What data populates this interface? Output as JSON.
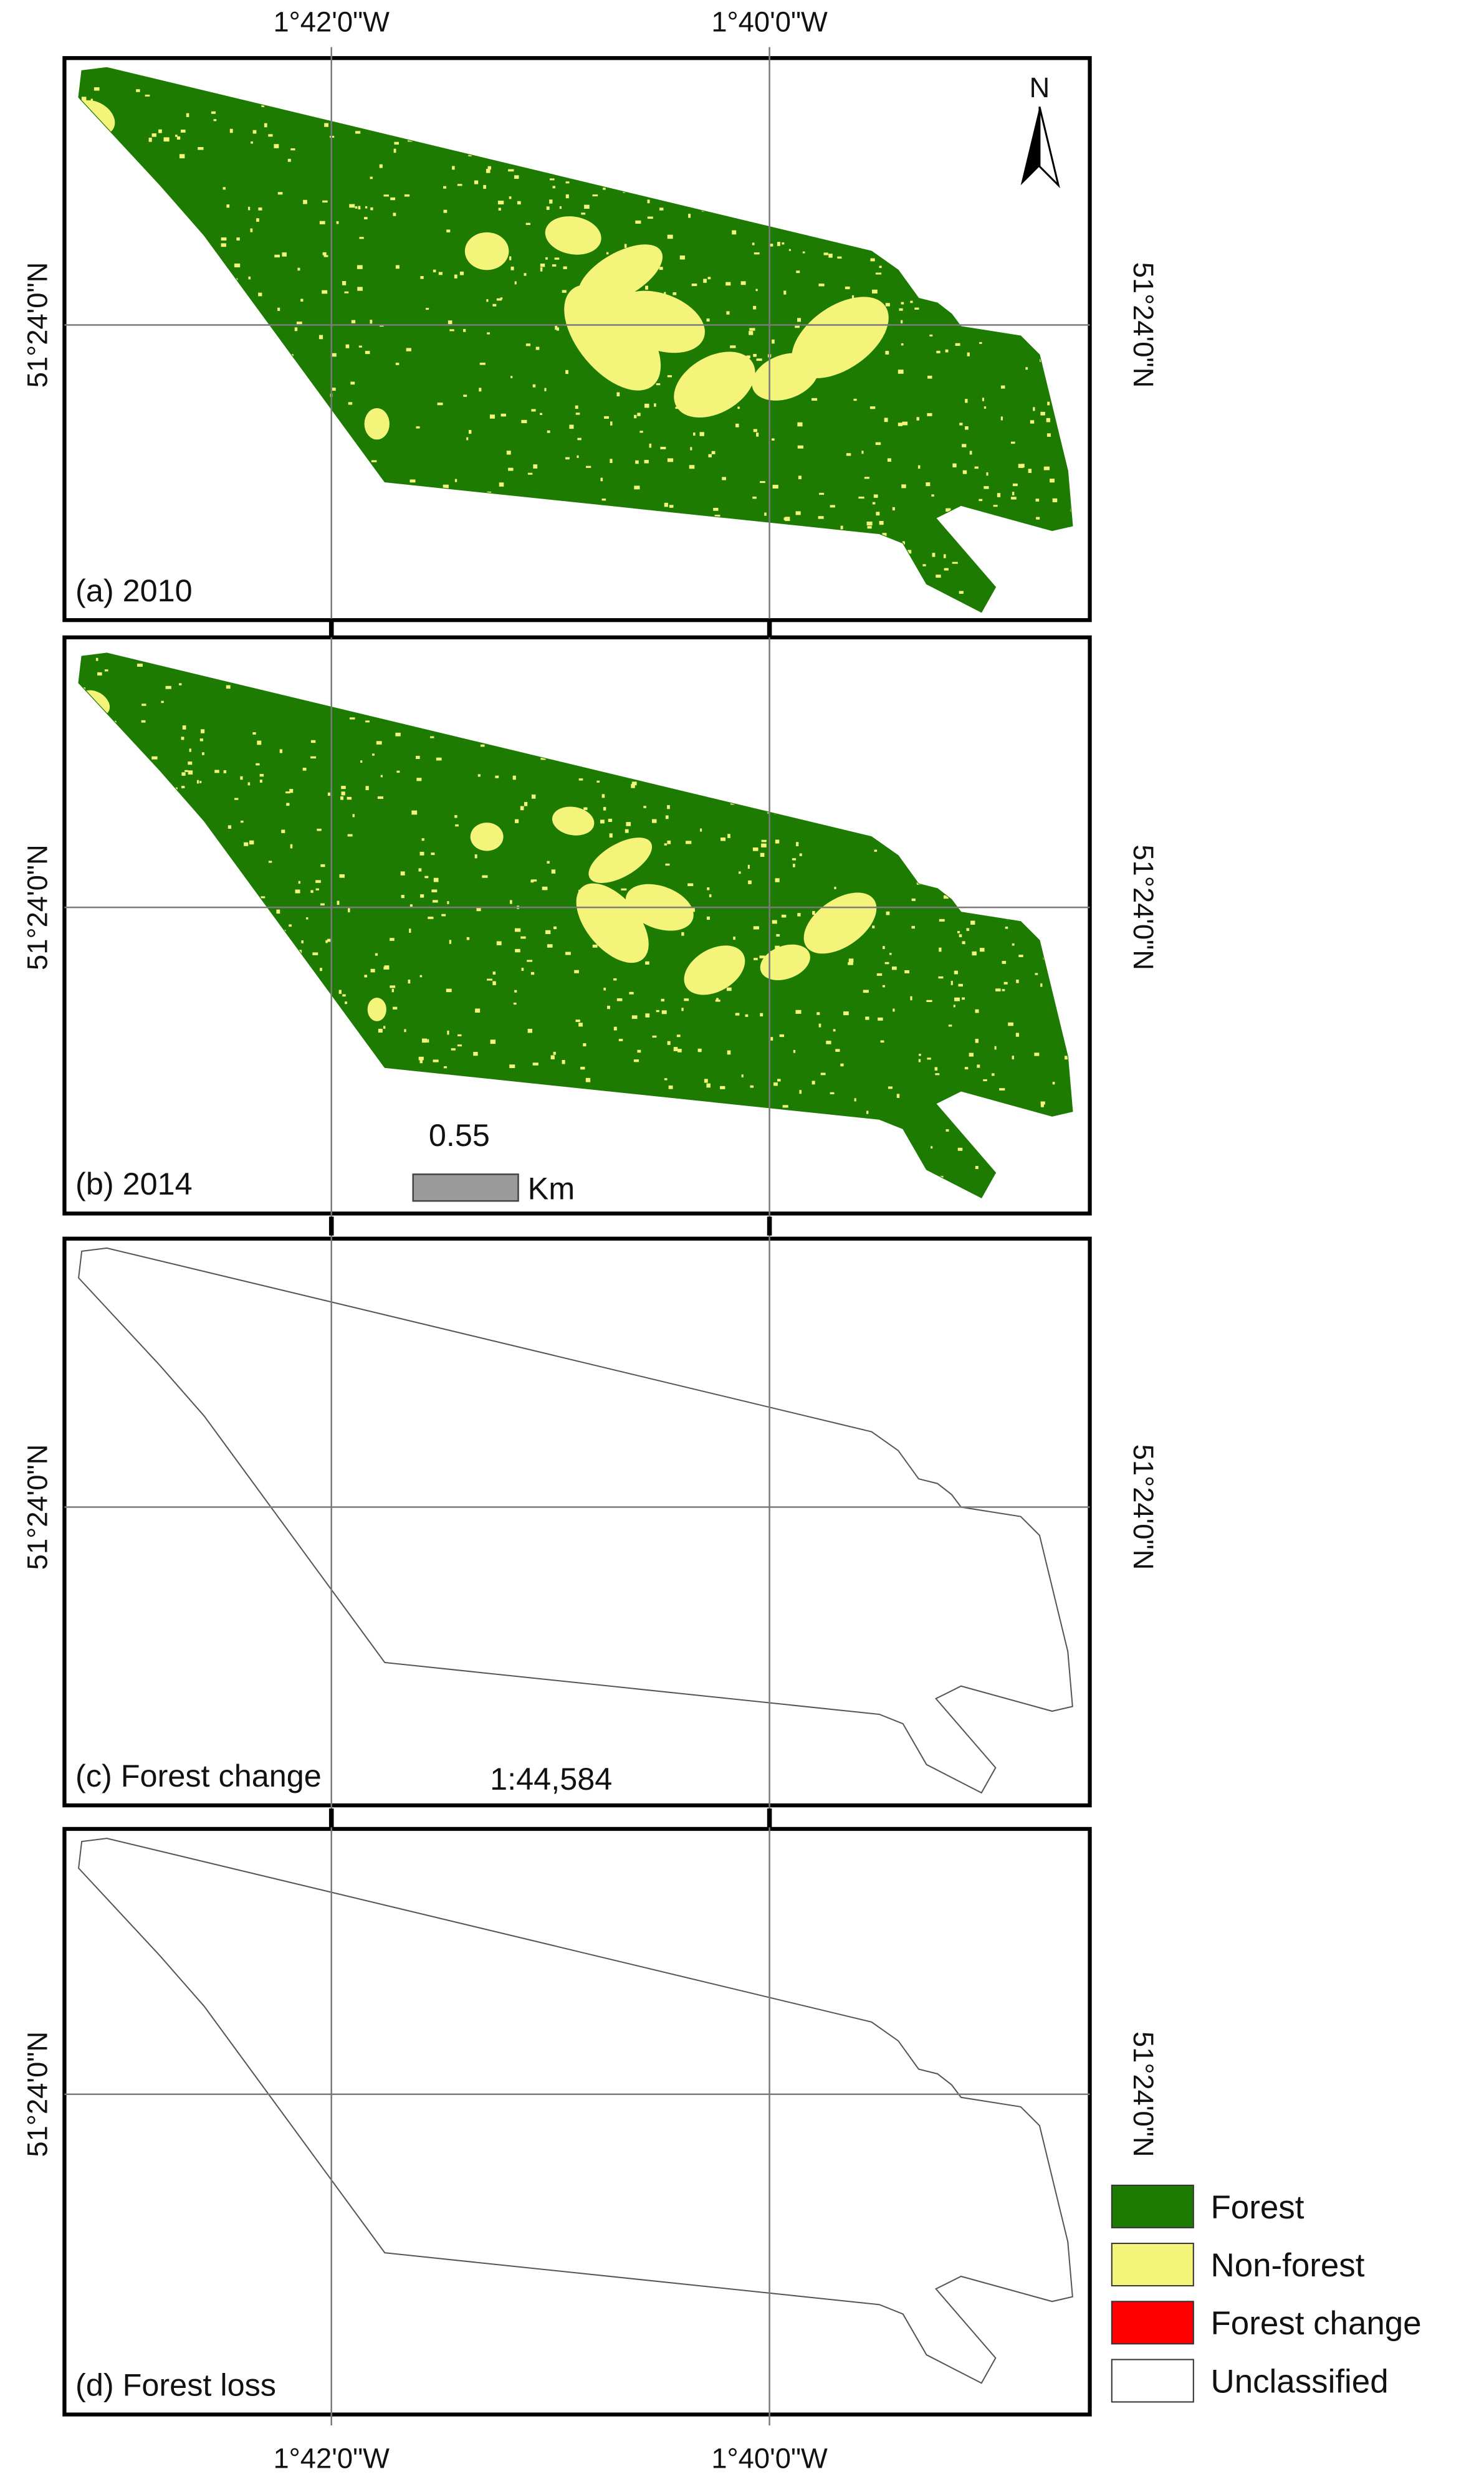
{
  "map": {
    "top_labels": [
      "1°42'0\"W",
      "1°40'0\"W"
    ],
    "bottom_labels": [
      "1°42'0\"W",
      "1°40'0\"W"
    ],
    "left_labels": [
      "51°24'0\"N",
      "51°24'0\"N",
      "51°24'0\"N",
      "51°24'0\"N"
    ],
    "right_labels": [
      "51°24'0\"N",
      "51°24'0\"N",
      "51°24'0\"N",
      "51°24'0\"N"
    ],
    "panels": [
      {
        "label": "(a) 2010"
      },
      {
        "label": "(b) 2014"
      },
      {
        "label": "(c) Forest change"
      },
      {
        "label": "(d) Forest loss"
      }
    ],
    "north": "N",
    "scale_bar": {
      "value": "0.55",
      "unit": "Km"
    },
    "scale_text": "1:44,584",
    "legend": [
      {
        "label": "Forest",
        "color": "#1e7b02"
      },
      {
        "label": "Non-forest",
        "color": "#f4f47a"
      },
      {
        "label": "Forest change",
        "color": "#ff0000"
      },
      {
        "label": "Unclassified",
        "color": "#ffffff"
      }
    ]
  }
}
